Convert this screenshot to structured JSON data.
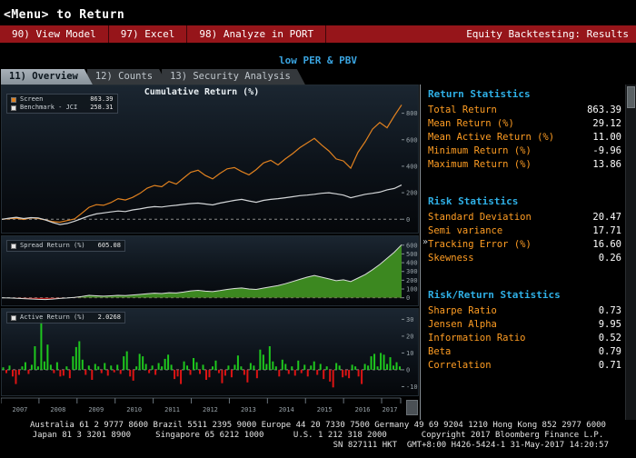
{
  "titlebar": {
    "menu_hint": "<Menu> to Return"
  },
  "menubar": {
    "items": [
      {
        "label": "90) View Model"
      },
      {
        "label": "97) Excel"
      },
      {
        "label": "98) Analyze in PORT"
      }
    ],
    "title": "Equity Backtesting: Results"
  },
  "strategy_label": "low PER & PBV",
  "tabs": [
    {
      "label": "11) Overview",
      "active": true
    },
    {
      "label": "12) Counts",
      "active": false
    },
    {
      "label": "13) Security Analysis",
      "active": false
    }
  ],
  "stats_panel": {
    "expander": "»",
    "sections": [
      {
        "header": "Return Statistics",
        "rows": [
          {
            "label": "Total Return",
            "value": "863.39"
          },
          {
            "label": "Mean Return (%)",
            "value": "29.12"
          },
          {
            "label": "Mean Active Return (%)",
            "value": "11.00"
          },
          {
            "label": "Minimum Return (%)",
            "value": "-9.96"
          },
          {
            "label": "Maximum Return (%)",
            "value": "13.86"
          }
        ]
      },
      {
        "header": "Risk Statistics",
        "rows": [
          {
            "label": "Standard Deviation",
            "value": "20.47"
          },
          {
            "label": "Semi variance",
            "value": "17.71"
          },
          {
            "label": "Tracking Error (%)",
            "value": "16.60"
          },
          {
            "label": "Skewness",
            "value": "0.26"
          }
        ]
      },
      {
        "header": "Risk/Return Statistics",
        "rows": [
          {
            "label": "Sharpe Ratio",
            "value": "0.73"
          },
          {
            "label": "Jensen Alpha",
            "value": "9.95"
          },
          {
            "label": "Information Ratio",
            "value": "0.52"
          },
          {
            "label": "Beta",
            "value": "0.79"
          },
          {
            "label": "Correlation",
            "value": "0.71"
          }
        ]
      }
    ]
  },
  "footer": {
    "line1": "Australia 61 2 9777 8600 Brazil 5511 2395 9000 Europe 44 20 7330 7500 Germany 49 69 9204 1210 Hong Kong 852 2977 6000",
    "line2": "Japan 81 3 3201 8900     Singapore 65 6212 1000      U.S. 1 212 318 2000       Copyright 2017 Bloomberg Finance L.P.",
    "line3": "SN 827111 HKT  GMT+8:00 H426-5424-1 31-May-2017 14:20:57"
  },
  "colors": {
    "menubar_red": "#96151a",
    "header_cyan": "#2fb0e6",
    "label_amber": "#ff9d23",
    "screen_orange": "#e0811f",
    "benchmark_white": "#d3d6d8",
    "area_green": "#3c8820",
    "area_red": "#b01818",
    "bar_green": "#1ec71e",
    "bar_red": "#dd1414",
    "axis_grey": "#98a2a8"
  },
  "chart_data": [
    {
      "id": "cumulative-return",
      "type": "line",
      "title": "Cumulative Return (%)",
      "x_range": [
        2007,
        2017.5
      ],
      "ylim": [
        -60,
        900
      ],
      "yticks": [
        0,
        200,
        400,
        600,
        800
      ],
      "zero_line": true,
      "legend": [
        {
          "swatch": "#e0811f",
          "label": "Screen",
          "value": "863.39"
        },
        {
          "swatch": "#e6e6e6",
          "label": "Benchmark - JCI",
          "value": "258.31"
        }
      ],
      "series": [
        {
          "name": "Screen",
          "color": "#e0811f",
          "values": [
            0,
            4,
            8,
            -2,
            10,
            6,
            -5,
            -18,
            -22,
            -10,
            2,
            45,
            90,
            110,
            105,
            125,
            155,
            145,
            165,
            195,
            235,
            255,
            245,
            285,
            265,
            310,
            355,
            370,
            330,
            305,
            345,
            380,
            390,
            360,
            335,
            375,
            425,
            445,
            410,
            455,
            495,
            540,
            575,
            610,
            560,
            515,
            455,
            440,
            385,
            505,
            585,
            680,
            730,
            690,
            780,
            863
          ]
        },
        {
          "name": "Benchmark - JCI",
          "color": "#d3d6d8",
          "values": [
            0,
            8,
            15,
            5,
            12,
            10,
            -5,
            -25,
            -40,
            -32,
            -15,
            5,
            25,
            40,
            48,
            55,
            62,
            58,
            70,
            78,
            88,
            95,
            92,
            100,
            105,
            112,
            118,
            122,
            115,
            108,
            122,
            132,
            142,
            150,
            138,
            128,
            142,
            150,
            155,
            162,
            170,
            178,
            182,
            188,
            196,
            200,
            192,
            182,
            162,
            175,
            188,
            196,
            205,
            222,
            232,
            258
          ]
        }
      ]
    },
    {
      "id": "spread-return",
      "type": "area",
      "title": "",
      "x_range": [
        2007,
        2017.5
      ],
      "ylim": [
        -45,
        660
      ],
      "yticks": [
        0,
        100,
        200,
        300,
        400,
        500,
        600
      ],
      "zero_line": true,
      "legend": [
        {
          "swatch": "#e6e6e6",
          "label": "Spread Return (%)",
          "value": "605.08"
        }
      ],
      "series": [
        {
          "name": "Spread Return (%)",
          "color_pos": "#3c8820",
          "color_neg": "#b01818",
          "line_color": "#d8dcd8",
          "values": [
            0,
            -3,
            -6,
            -10,
            -14,
            -18,
            -20,
            -15,
            -8,
            -2,
            5,
            15,
            28,
            22,
            18,
            22,
            28,
            25,
            32,
            38,
            45,
            52,
            48,
            58,
            55,
            65,
            78,
            85,
            75,
            70,
            82,
            95,
            105,
            112,
            100,
            95,
            110,
            125,
            140,
            160,
            185,
            210,
            235,
            255,
            235,
            215,
            195,
            205,
            185,
            225,
            265,
            320,
            380,
            450,
            520,
            605
          ]
        }
      ]
    },
    {
      "id": "active-return",
      "type": "bar",
      "title": "",
      "x_range": [
        2007,
        2017.5
      ],
      "ylim": [
        -13,
        34
      ],
      "yticks": [
        -10,
        0,
        10,
        20,
        30
      ],
      "zero_line": true,
      "xticklabels": [
        "2007",
        "2008",
        "2009",
        "2010",
        "2011",
        "2012",
        "2013",
        "2014",
        "2015",
        "2016",
        "2017"
      ],
      "legend": [
        {
          "swatch": "#e6e6e6",
          "label": "Active Return (%)",
          "value": "2.0268"
        }
      ],
      "series": [
        {
          "name": "Active Return (%)",
          "color_pos": "#1ec71e",
          "color_neg": "#dd1414",
          "values": [
            1.5,
            -2,
            2.5,
            -4,
            -8.5,
            -3,
            2,
            4.5,
            -2.5,
            3,
            14,
            2,
            30,
            5,
            15,
            3,
            -2,
            4.5,
            -4,
            -3.5,
            2,
            -5,
            8,
            13.5,
            17,
            6,
            -3,
            2.5,
            -6,
            3.5,
            2,
            -2,
            4,
            -3.5,
            2.5,
            -1.5,
            3,
            -2.5,
            8,
            11,
            -4,
            -6.5,
            2,
            9.5,
            8,
            3.5,
            -2,
            2.5,
            -3,
            4,
            2,
            6.5,
            9,
            3,
            -5.5,
            -4,
            -8.5,
            5,
            2.5,
            -3,
            7,
            4.5,
            -2.5,
            3,
            -6,
            -4.5,
            2,
            5.5,
            -2,
            -8,
            -3.5,
            2.5,
            -4.5,
            3,
            8.5,
            2,
            -3,
            -7.5,
            4,
            2.5,
            -5,
            12,
            9,
            3.5,
            14,
            5,
            2,
            -4,
            6,
            3.5,
            -2.5,
            2,
            -3.5,
            5.5,
            -2,
            3,
            -4,
            2.5,
            5,
            -3,
            3.5,
            -5.5,
            2,
            -7,
            -10.5,
            4,
            2.5,
            -4.5,
            -3.5,
            -5,
            3,
            2,
            -4,
            -8.5,
            3.5,
            2.5,
            8,
            9.5,
            2,
            10,
            9,
            3.5,
            7.5,
            2.5,
            4.5,
            2.0
          ]
        }
      ]
    }
  ]
}
